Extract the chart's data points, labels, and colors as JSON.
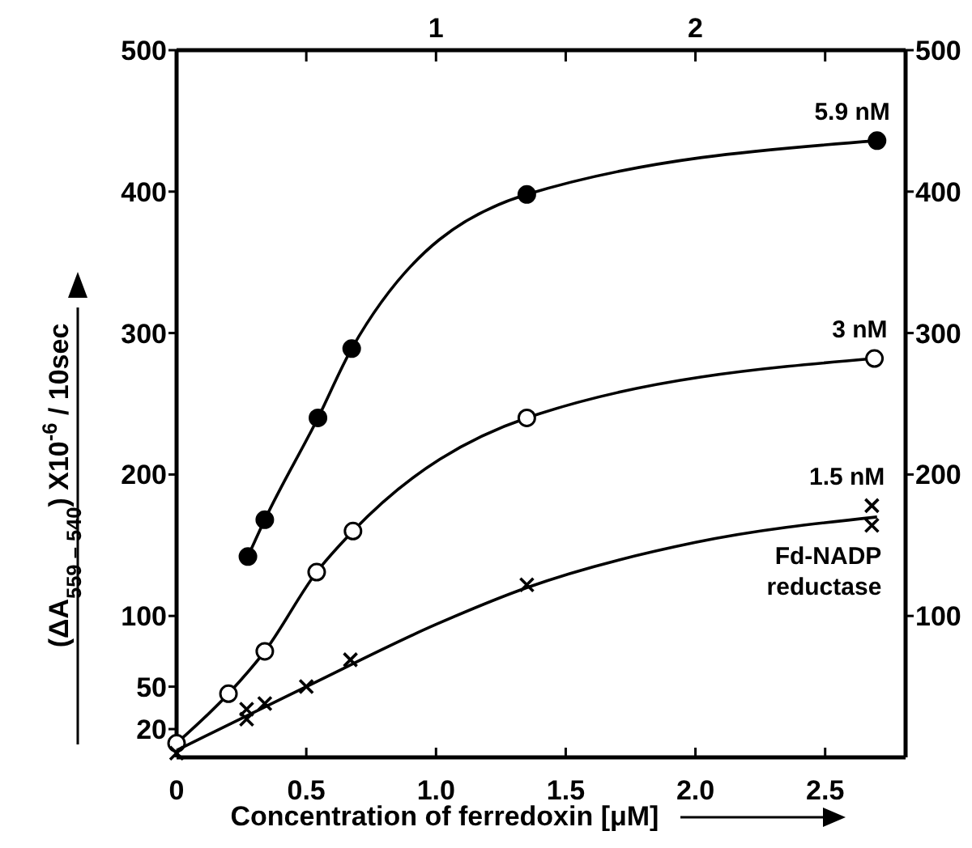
{
  "chart_data": {
    "type": "line",
    "xlabel": "Concentration of ferredoxin [μM]",
    "ylabel": "(ΔA$_{559 – 540}$) X10$^{-6}$ / 10sec",
    "xlim": [
      0,
      2.81
    ],
    "xticks": [
      0,
      0.5,
      {
        "value": 1,
        "label": "1.0"
      },
      1.5,
      {
        "value": 2,
        "label": "2.0"
      },
      2.5
    ],
    "x2lim": [
      0,
      2.81
    ],
    "x2ticks": [
      {
        "value": 0.5,
        "label": null
      },
      1,
      {
        "value": 1.5,
        "label": null
      },
      2,
      {
        "value": 2.5,
        "label": null
      }
    ],
    "ylim": [
      0,
      500
    ],
    "yticks": [
      20,
      50,
      100,
      200,
      300,
      400,
      500
    ],
    "y2lim": [
      0,
      500
    ],
    "y2ticks": [
      100,
      200,
      300,
      400,
      500
    ],
    "annotations": [
      {
        "text": "Fd-NADP reductase",
        "x": 2.68,
        "y": 164
      }
    ],
    "series": [
      {
        "name": "5.9 nM",
        "marker": "circle",
        "color": "#000000",
        "x": [
          0.275,
          0.34,
          0.545,
          0.675,
          1.35,
          2.7
        ],
        "values": [
          142,
          168,
          240,
          289,
          398,
          436
        ]
      },
      {
        "marker": "none",
        "color": "#000000",
        "x": [
          0,
          0.2,
          0.34,
          0.54,
          0.68,
          1.35,
          2.69
        ],
        "values": [
          10,
          45,
          75,
          131,
          160,
          240,
          282
        ]
      },
      {
        "name": "3 nM",
        "type": "scatter",
        "marker": "circle",
        "color": "#ffffff",
        "x": [
          0,
          0.2,
          0.34,
          0.54,
          0.68,
          1.35,
          2.69
        ],
        "values": [
          10,
          45,
          75,
          131,
          160,
          240,
          282
        ]
      },
      {
        "name": "1.5 nM",
        "type": "scatter",
        "marker": "cross",
        "color": "#000000",
        "x": [
          0,
          0.27,
          0.27,
          0.34,
          0.5,
          0.67,
          1.35,
          2.68,
          2.68
        ],
        "values": [
          3,
          27,
          34,
          38,
          50,
          69,
          122,
          164,
          178
        ]
      },
      {
        "marker": "none",
        "color": "#000000",
        "x": [
          0,
          0.5,
          1.0,
          1.35,
          2.0,
          2.7
        ],
        "values": [
          5,
          50,
          94,
          120,
          152,
          170
        ]
      }
    ]
  }
}
